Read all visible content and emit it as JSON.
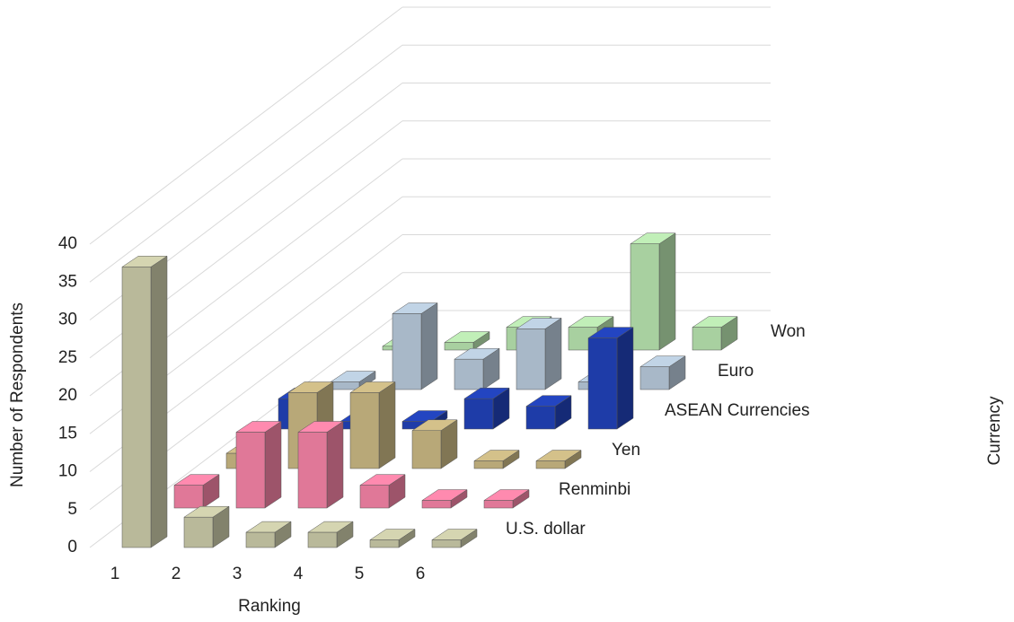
{
  "chart_data": {
    "type": "bar3d",
    "x_label": "Ranking",
    "y_label": "Number  of Respondents",
    "z_label": "Currency",
    "categories": [
      "1",
      "2",
      "3",
      "4",
      "5",
      "6"
    ],
    "series": [
      {
        "name": "U.S. dollar",
        "color": "#b9b99a",
        "values": [
          37,
          4,
          2,
          2,
          1,
          1
        ]
      },
      {
        "name": "Renminbi",
        "color": "#e07898",
        "values": [
          3,
          10,
          10,
          3,
          1,
          1
        ]
      },
      {
        "name": "Yen",
        "color": "#b8a878",
        "values": [
          2,
          10,
          10,
          5,
          1,
          1
        ]
      },
      {
        "name": "ASEAN Currencies",
        "color": "#1e3ca8",
        "values": [
          4,
          1,
          1,
          4,
          3,
          12
        ]
      },
      {
        "name": "Euro",
        "color": "#a8b8c8",
        "values": [
          1,
          10,
          4,
          8,
          1,
          3
        ]
      },
      {
        "name": "Won",
        "color": "#a8d0a0",
        "values": [
          0.5,
          1,
          3,
          3,
          14,
          3
        ]
      }
    ],
    "ylim": [
      0,
      40
    ],
    "yticks": [
      0,
      5,
      10,
      15,
      20,
      25,
      30,
      35,
      40
    ],
    "grid": true
  }
}
